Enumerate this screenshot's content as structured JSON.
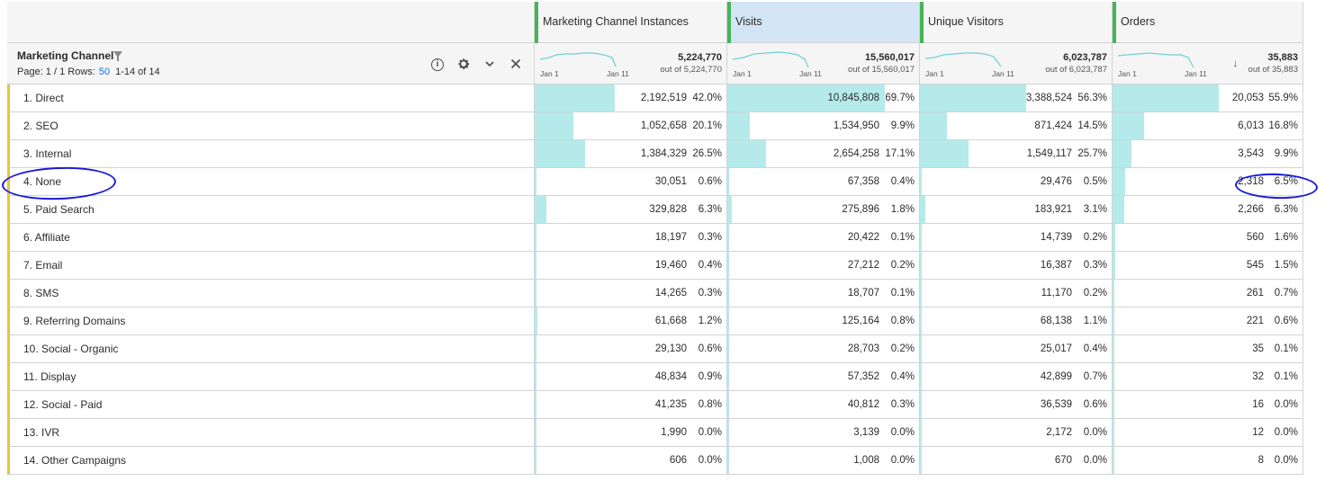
{
  "accent_colors": {
    "metric_bar": "#44b556",
    "dimension_bar": "#e5c53a",
    "fill": "#b5eaeb",
    "annotation": "#1a1ad8",
    "selected_header": "#d3e5f5"
  },
  "dimension": {
    "title": "Marketing Channel",
    "page_label": "Page: 1 / 1",
    "rows_label": "Rows:",
    "rows_value": "50",
    "range": "1-14 of 14",
    "icons": [
      "filter-icon",
      "info-icon",
      "gear-icon",
      "chevron-down-icon",
      "close-icon"
    ]
  },
  "columns": [
    {
      "name": "Marketing Channel Instances",
      "total": "5,224,770",
      "out_of": "out of 5,224,770",
      "start": "Jan 1",
      "end": "Jan 11",
      "selected": false
    },
    {
      "name": "Visits",
      "total": "15,560,017",
      "out_of": "out of 15,560,017",
      "start": "Jan 1",
      "end": "Jan 11",
      "selected": true
    },
    {
      "name": "Unique Visitors",
      "total": "6,023,787",
      "out_of": "out of 6,023,787",
      "start": "Jan 1",
      "end": "Jan 11",
      "selected": false
    },
    {
      "name": "Orders",
      "total": "35,883",
      "out_of": "out of 35,883",
      "start": "Jan 1",
      "end": "Jan 11",
      "selected": false,
      "sorted": true
    }
  ],
  "rows": [
    {
      "label": "1. Direct",
      "cells": [
        [
          "2,192,519",
          "42.0%",
          0.42
        ],
        [
          "10,845,808",
          "69.7%",
          0.697
        ],
        [
          "3,388,524",
          "56.3%",
          0.563
        ],
        [
          "20,053",
          "55.9%",
          0.559
        ]
      ]
    },
    {
      "label": "2. SEO",
      "cells": [
        [
          "1,052,658",
          "20.1%",
          0.201
        ],
        [
          "1,534,950",
          "9.9%",
          0.099
        ],
        [
          "871,424",
          "14.5%",
          0.145
        ],
        [
          "6,013",
          "16.8%",
          0.168
        ]
      ]
    },
    {
      "label": "3. Internal",
      "cells": [
        [
          "1,384,329",
          "26.5%",
          0.265
        ],
        [
          "2,654,258",
          "17.1%",
          0.171
        ],
        [
          "1,549,117",
          "25.7%",
          0.257
        ],
        [
          "3,543",
          "9.9%",
          0.099
        ]
      ]
    },
    {
      "label": "4. None",
      "cells": [
        [
          "30,051",
          "0.6%",
          0.006
        ],
        [
          "67,358",
          "0.4%",
          0.004
        ],
        [
          "29,476",
          "0.5%",
          0.005
        ],
        [
          "2,318",
          "6.5%",
          0.065
        ]
      ]
    },
    {
      "label": "5. Paid Search",
      "cells": [
        [
          "329,828",
          "6.3%",
          0.063
        ],
        [
          "275,896",
          "1.8%",
          0.018
        ],
        [
          "183,921",
          "3.1%",
          0.031
        ],
        [
          "2,266",
          "6.3%",
          0.063
        ]
      ]
    },
    {
      "label": "6. Affiliate",
      "cells": [
        [
          "18,197",
          "0.3%",
          0.003
        ],
        [
          "20,422",
          "0.1%",
          0.001
        ],
        [
          "14,739",
          "0.2%",
          0.002
        ],
        [
          "560",
          "1.6%",
          0.016
        ]
      ]
    },
    {
      "label": "7. Email",
      "cells": [
        [
          "19,460",
          "0.4%",
          0.004
        ],
        [
          "27,212",
          "0.2%",
          0.002
        ],
        [
          "16,387",
          "0.3%",
          0.003
        ],
        [
          "545",
          "1.5%",
          0.015
        ]
      ]
    },
    {
      "label": "8. SMS",
      "cells": [
        [
          "14,265",
          "0.3%",
          0.003
        ],
        [
          "18,707",
          "0.1%",
          0.001
        ],
        [
          "11,170",
          "0.2%",
          0.002
        ],
        [
          "261",
          "0.7%",
          0.007
        ]
      ]
    },
    {
      "label": "9. Referring Domains",
      "cells": [
        [
          "61,668",
          "1.2%",
          0.012
        ],
        [
          "125,164",
          "0.8%",
          0.008
        ],
        [
          "68,138",
          "1.1%",
          0.011
        ],
        [
          "221",
          "0.6%",
          0.006
        ]
      ]
    },
    {
      "label": "10. Social - Organic",
      "cells": [
        [
          "29,130",
          "0.6%",
          0.006
        ],
        [
          "28,703",
          "0.2%",
          0.002
        ],
        [
          "25,017",
          "0.4%",
          0.004
        ],
        [
          "35",
          "0.1%",
          0.001
        ]
      ]
    },
    {
      "label": "11. Display",
      "cells": [
        [
          "48,834",
          "0.9%",
          0.009
        ],
        [
          "57,352",
          "0.4%",
          0.004
        ],
        [
          "42,899",
          "0.7%",
          0.007
        ],
        [
          "32",
          "0.1%",
          0.001
        ]
      ]
    },
    {
      "label": "12. Social - Paid",
      "cells": [
        [
          "41,235",
          "0.8%",
          0.008
        ],
        [
          "40,812",
          "0.3%",
          0.003
        ],
        [
          "36,539",
          "0.6%",
          0.006
        ],
        [
          "16",
          "0.0%",
          0.0
        ]
      ]
    },
    {
      "label": "13. IVR",
      "cells": [
        [
          "1,990",
          "0.0%",
          0.0
        ],
        [
          "3,139",
          "0.0%",
          0.0
        ],
        [
          "2,172",
          "0.0%",
          0.0
        ],
        [
          "12",
          "0.0%",
          0.0
        ]
      ]
    },
    {
      "label": "14. Other Campaigns",
      "cells": [
        [
          "606",
          "0.0%",
          0.0
        ],
        [
          "1,008",
          "0.0%",
          0.0
        ],
        [
          "670",
          "0.0%",
          0.0
        ],
        [
          "8",
          "0.0%",
          0.0
        ]
      ]
    }
  ]
}
